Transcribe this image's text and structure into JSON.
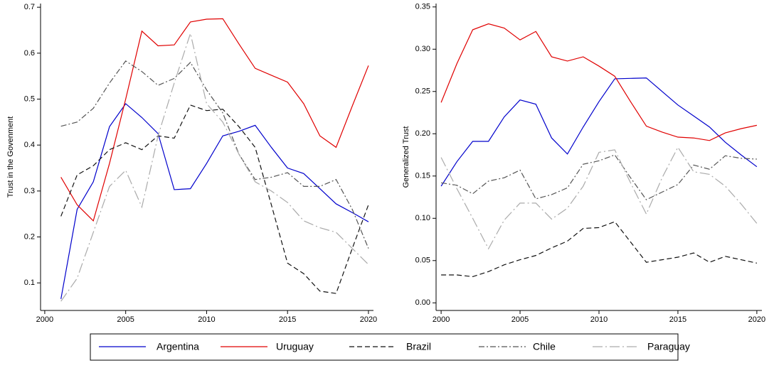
{
  "chart_data": [
    {
      "type": "line",
      "y_label": "Trust in the Govenment",
      "x": [
        2001,
        2002,
        2003,
        2004,
        2005,
        2006,
        2007,
        2008,
        2009,
        2010,
        2011,
        2012,
        2013,
        2014,
        2015,
        2016,
        2017,
        2018,
        2019,
        2020
      ],
      "xlim": [
        1999.74,
        2020.31
      ],
      "xticks": [
        2000,
        2005,
        2010,
        2015,
        2020
      ],
      "ylim": [
        0.04,
        0.708
      ],
      "yticks": [
        0.1,
        0.2,
        0.3,
        0.4,
        0.5,
        0.6,
        0.7
      ],
      "series": [
        {
          "name": "Argentina",
          "color": "#0000cc",
          "line_style": "solid",
          "values": [
            0.065,
            0.26,
            0.32,
            0.44,
            0.49,
            0.46,
            0.425,
            0.303,
            0.305,
            0.36,
            0.42,
            0.43,
            0.443,
            0.395,
            0.35,
            0.338,
            0.305,
            0.272,
            0.253,
            0.233
          ]
        },
        {
          "name": "Uruguay",
          "color": "#e00000",
          "line_style": "solid",
          "values": [
            0.33,
            0.27,
            0.235,
            0.36,
            0.5,
            0.648,
            0.616,
            0.618,
            0.668,
            0.674,
            0.675,
            0.62,
            0.567,
            0.552,
            0.537,
            0.49,
            0.42,
            0.395,
            0.485,
            0.573
          ]
        },
        {
          "name": "Brazil",
          "color": "#111111",
          "line_style": "dashed",
          "values": [
            0.245,
            0.335,
            0.355,
            0.39,
            0.405,
            0.39,
            0.42,
            0.415,
            0.487,
            0.475,
            0.478,
            0.44,
            0.395,
            0.27,
            0.143,
            0.12,
            0.082,
            0.077,
            0.175,
            0.27
          ]
        },
        {
          "name": "Chile",
          "color": "#555555",
          "line_style": "dashdot",
          "values": [
            0.441,
            0.45,
            0.48,
            0.535,
            0.583,
            0.56,
            0.53,
            0.545,
            0.58,
            0.52,
            0.47,
            0.38,
            0.325,
            0.33,
            0.34,
            0.31,
            0.31,
            0.325,
            0.26,
            0.175
          ]
        },
        {
          "name": "Paraguay",
          "color": "#aaaaaa",
          "line_style": "longdashdot",
          "values": [
            0.06,
            0.11,
            0.21,
            0.31,
            0.345,
            0.265,
            0.42,
            0.535,
            0.643,
            0.49,
            0.45,
            0.38,
            0.32,
            0.3,
            0.275,
            0.235,
            0.22,
            0.21,
            0.175,
            0.14
          ]
        }
      ]
    },
    {
      "type": "line",
      "y_label": "Generalized Trust",
      "x": [
        2000,
        2001,
        2002,
        2003,
        2004,
        2005,
        2006,
        2007,
        2008,
        2009,
        2010,
        2011,
        2012,
        2013,
        2014,
        2015,
        2016,
        2017,
        2018,
        2019,
        2020
      ],
      "xlim": [
        1999.68,
        2020.32
      ],
      "xticks": [
        2000,
        2005,
        2010,
        2015,
        2020
      ],
      "ylim": [
        -0.009,
        0.354
      ],
      "yticks": [
        {
          "value": 0,
          "label": "0.00"
        },
        {
          "value": 0.05,
          "label": "0.05"
        },
        {
          "value": 0.1,
          "label": "0.10"
        },
        {
          "value": 0.15,
          "label": "0.15"
        },
        {
          "value": 0.2,
          "label": "0.20"
        },
        {
          "value": 0.25,
          "label": "0.25"
        },
        {
          "value": 0.3,
          "label": "0.30"
        },
        {
          "value": 0.35,
          "label": "0.35"
        }
      ],
      "series": [
        {
          "name": "Argentina",
          "color": "#0000cc",
          "line_style": "solid",
          "values": [
            0.138,
            0.167,
            0.191,
            0.191,
            0.22,
            0.24,
            0.235,
            0.195,
            0.176,
            0.208,
            0.238,
            0.265,
            0.2655,
            0.266,
            0.25,
            0.234,
            0.221,
            0.208,
            0.19,
            0.175,
            0.161
          ]
        },
        {
          "name": "Uruguay",
          "color": "#e00000",
          "line_style": "solid",
          "values": [
            0.237,
            0.283,
            0.323,
            0.33,
            0.325,
            0.311,
            0.321,
            0.291,
            0.286,
            0.291,
            0.28,
            0.268,
            0.238,
            0.209,
            0.202,
            0.196,
            0.195,
            0.192,
            0.201,
            0.206,
            0.21
          ]
        },
        {
          "name": "Brazil",
          "color": "#111111",
          "line_style": "dashed",
          "values": [
            0.033,
            0.033,
            0.031,
            0.037,
            0.045,
            0.051,
            0.056,
            0.065,
            0.073,
            0.088,
            0.089,
            0.096,
            0.072,
            0.048,
            0.051,
            0.054,
            0.059,
            0.048,
            0.055,
            0.051,
            0.047
          ]
        },
        {
          "name": "Chile",
          "color": "#555555",
          "line_style": "dashdot",
          "values": [
            0.142,
            0.139,
            0.129,
            0.144,
            0.148,
            0.157,
            0.123,
            0.128,
            0.136,
            0.164,
            0.168,
            0.175,
            0.148,
            0.122,
            0.131,
            0.14,
            0.163,
            0.158,
            0.174,
            0.171,
            0.17
          ]
        },
        {
          "name": "Paraguay",
          "color": "#aaaaaa",
          "line_style": "longdashdot",
          "values": [
            0.172,
            0.135,
            0.1,
            0.064,
            0.098,
            0.118,
            0.118,
            0.099,
            0.112,
            0.138,
            0.178,
            0.181,
            0.142,
            0.105,
            0.148,
            0.184,
            0.155,
            0.152,
            0.138,
            0.117,
            0.094
          ]
        }
      ]
    }
  ]
}
